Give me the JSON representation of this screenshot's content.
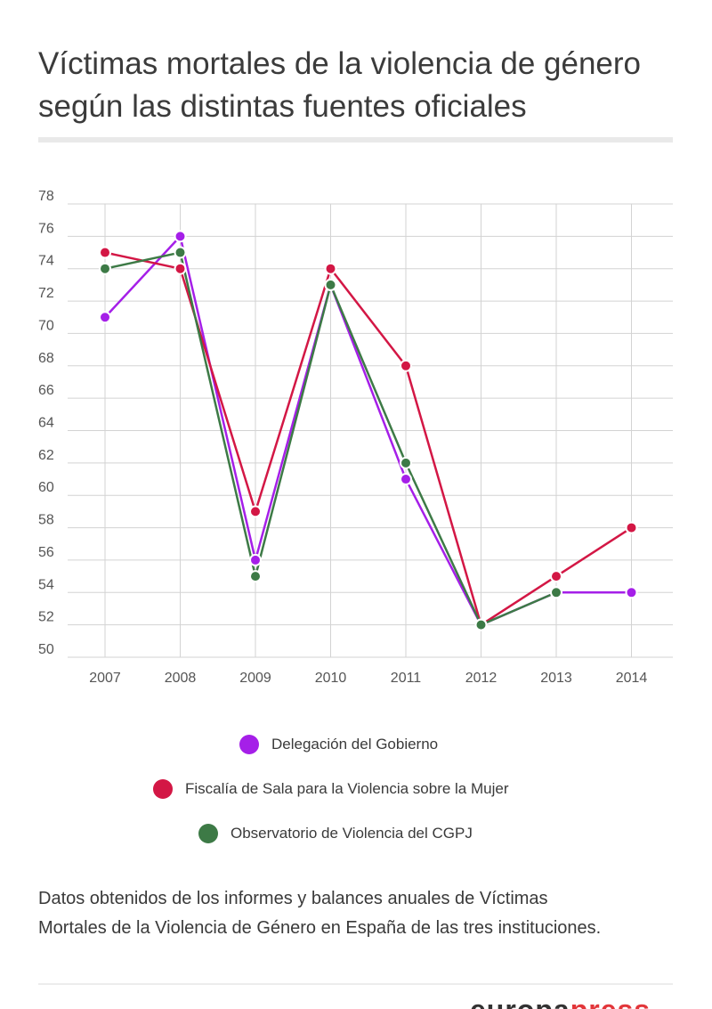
{
  "title": {
    "line1": "Víctimas mortales de la violencia de género",
    "line2": "según las distintas fuentes oficiales"
  },
  "chart_data": {
    "type": "line",
    "categories": [
      "2007",
      "2008",
      "2009",
      "2010",
      "2011",
      "2012",
      "2013",
      "2014"
    ],
    "ylim": [
      50,
      78
    ],
    "yticks": [
      50,
      52,
      54,
      56,
      58,
      60,
      62,
      64,
      66,
      68,
      70,
      72,
      74,
      76,
      78
    ],
    "xlabel": "",
    "ylabel": "",
    "grid": true,
    "legend_position": "bottom",
    "series": [
      {
        "name": "Delegación del Gobierno",
        "color": "#a51fe8",
        "values": [
          71,
          76,
          56,
          73,
          61,
          52,
          54,
          54
        ]
      },
      {
        "name": "Fiscalía de Sala para la Violencia sobre la Mujer",
        "color": "#d31745",
        "values": [
          75,
          74,
          59,
          74,
          68,
          52,
          55,
          58
        ]
      },
      {
        "name": "Observatorio de Violencia del CGPJ",
        "color": "#3d7a46",
        "values": [
          74,
          75,
          55,
          73,
          62,
          52,
          54,
          null
        ]
      }
    ]
  },
  "note": {
    "line1": "Datos obtenidos de los informes y balances anuales de Víctimas",
    "line2": "Mortales de la Violencia de Género en España de las tres instituciones."
  },
  "logo": {
    "part1": "europa",
    "part2": "press"
  }
}
